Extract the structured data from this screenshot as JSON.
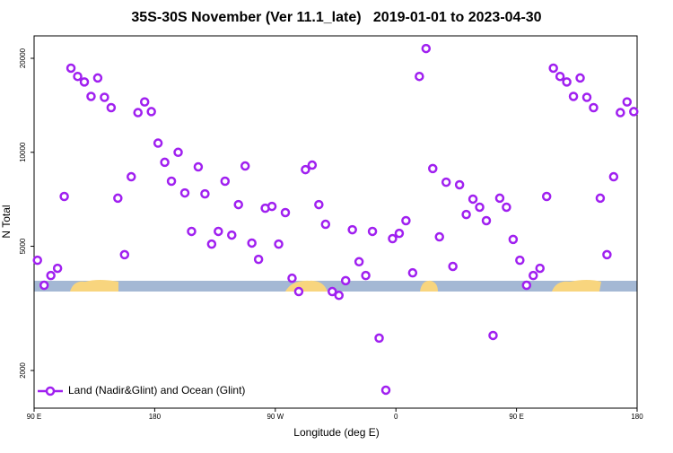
{
  "chart_data": {
    "type": "scatter",
    "title": "35S-30S November (Ver 11.1_late)   2019-01-01 to 2023-04-30",
    "xlabel": "Longitude (deg E)",
    "ylabel": "N Total",
    "x": [
      92.5,
      97.5,
      102.5,
      107.5,
      112.5,
      117.5,
      122.5,
      127.5,
      132.5,
      137.5,
      142.5,
      147.5,
      152.5,
      157.5,
      162.5,
      167.5,
      172.5,
      177.5,
      182.5,
      187.5,
      192.5,
      197.5,
      202.5,
      207.5,
      212.5,
      217.5,
      222.5,
      227.5,
      232.5,
      237.5,
      242.5,
      247.5,
      252.5,
      257.5,
      262.5,
      267.5,
      272.5,
      277.5,
      282.5,
      287.5,
      292.5,
      297.5,
      302.5,
      307.5,
      312.5,
      317.5,
      322.5,
      327.5,
      332.5,
      337.5,
      342.5,
      347.5,
      352.5,
      357.5,
      362.5,
      367.5,
      372.5,
      377.5,
      382.5,
      387.5,
      392.5,
      397.5,
      402.5,
      407.5,
      412.5,
      417.5,
      422.5,
      427.5,
      432.5,
      437.5,
      442.5,
      447.5,
      452.5,
      457.5,
      462.5,
      467.5,
      472.5,
      477.5,
      482.5,
      487.5,
      492.5,
      497.5,
      502.5,
      507.5,
      512.5,
      517.5,
      522.5,
      527.5,
      532.5,
      537.5
    ],
    "series": [
      {
        "name": "Land (Nadir&Glint) and Ocean (Glint)",
        "color": "#a020f0",
        "values": [
          4510,
          3750,
          4030,
          4250,
          7220,
          18600,
          17500,
          16800,
          15100,
          17300,
          15000,
          13900,
          7130,
          4700,
          8350,
          13400,
          14500,
          13500,
          10700,
          9290,
          8080,
          10000,
          7410,
          5580,
          8980,
          7360,
          5080,
          5580,
          8080,
          5430,
          6800,
          9040,
          5120,
          4540,
          6620,
          6710,
          5080,
          6410,
          3950,
          3580,
          8800,
          9100,
          6800,
          5880,
          3580,
          3480,
          3880,
          5650,
          4460,
          4030,
          5580,
          2540,
          1730,
          5290,
          5500,
          6040,
          4110,
          17500,
          21500,
          8870,
          5360,
          8020,
          4310,
          7870,
          6320,
          7080,
          6670,
          6040,
          2590,
          7130,
          6670,
          5260,
          4510,
          3750,
          4030,
          4250,
          7220,
          18600,
          17500,
          16800,
          15100,
          17300,
          15000,
          13900,
          7130,
          4700,
          8350,
          13400,
          14500,
          13500
        ]
      }
    ],
    "xlim": [
      90,
      540
    ],
    "ylim": [
      1515,
      23600
    ],
    "log_y": true,
    "xticks": [
      {
        "value": 90,
        "label": "90 E"
      },
      180,
      {
        "value": 270,
        "label": "90 W"
      },
      {
        "value": 360,
        "label": "0"
      },
      {
        "value": 450,
        "label": "90 E"
      },
      {
        "value": 540,
        "label": "180"
      }
    ],
    "yticks": [
      2000,
      5000,
      10000,
      20000
    ],
    "legend": "lower left"
  }
}
